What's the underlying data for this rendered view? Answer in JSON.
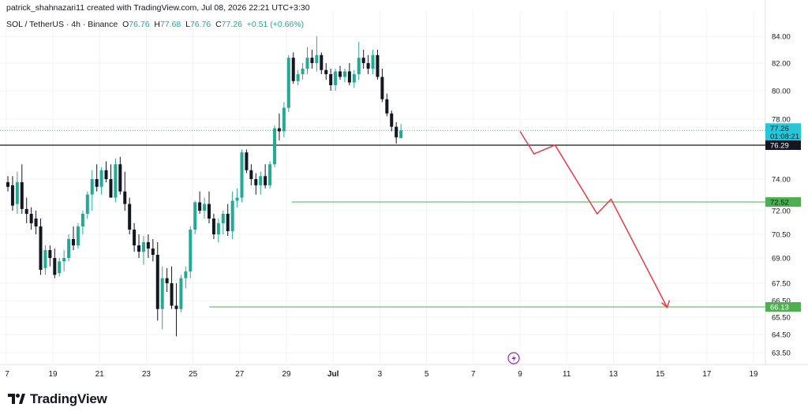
{
  "header": {
    "caption": "patrick_shahnazari11 created with TradingView.com, Jul 08, 2026 22:21 UTC+3:30"
  },
  "legend": {
    "symbol": "SOL / TetherUS · 4h · Binance",
    "o_label": "O",
    "o_value": "76.76",
    "h_label": "H",
    "h_value": "77.68",
    "l_label": "L",
    "l_value": "76.76",
    "c_label": "C",
    "c_value": "77.26",
    "change": "+0.51 (+0.66%)"
  },
  "footer": {
    "brand": "TradingView"
  },
  "colors": {
    "up": "#22ab94",
    "down": "#131722",
    "grid": "#f0f3fa",
    "green_line": "#4caf50",
    "projection": "#f23645",
    "price_tag": "#26c6da"
  },
  "chart_data": {
    "type": "candlestick",
    "x_ticks": [
      {
        "label": "7",
        "day": 17
      },
      {
        "label": "19",
        "day": 19
      },
      {
        "label": "21",
        "day": 21
      },
      {
        "label": "23",
        "day": 23
      },
      {
        "label": "25",
        "day": 25
      },
      {
        "label": "27",
        "day": 27
      },
      {
        "label": "29",
        "day": 29
      },
      {
        "label": "Jul",
        "day": 31
      },
      {
        "label": "3",
        "day": 33
      },
      {
        "label": "5",
        "day": 35
      },
      {
        "label": "7",
        "day": 37
      },
      {
        "label": "9",
        "day": 39
      },
      {
        "label": "11",
        "day": 41
      },
      {
        "label": "13",
        "day": 43
      },
      {
        "label": "15",
        "day": 45
      },
      {
        "label": "17",
        "day": 47
      },
      {
        "label": "19",
        "day": 49
      }
    ],
    "y_ticks": [
      "84.00",
      "82.00",
      "80.00",
      "78.00",
      "74.00",
      "72.00",
      "70.50",
      "69.00",
      "67.50",
      "66.50",
      "65.50",
      "64.50",
      "63.50"
    ],
    "y_tick_values": [
      84,
      82,
      80,
      78,
      74,
      72,
      70.5,
      69,
      67.5,
      66.5,
      65.5,
      64.5,
      63.5
    ],
    "price_labels": {
      "current": "77.26",
      "countdown": "01:08:21",
      "black_line": "76.29",
      "green_mid": "72.52",
      "green_low": "66.13"
    },
    "levels": {
      "black": 76.29,
      "green_mid": 72.52,
      "green_low": 66.13
    },
    "projection": [
      {
        "day": 39.0,
        "price": 77.2
      },
      {
        "day": 39.6,
        "price": 75.7
      },
      {
        "day": 40.5,
        "price": 76.3
      },
      {
        "day": 42.3,
        "price": 71.8
      },
      {
        "day": 42.9,
        "price": 72.7
      },
      {
        "day": 45.3,
        "price": 66.1
      }
    ],
    "candles": [
      [
        73.8,
        74.2,
        73.2,
        73.5
      ],
      [
        73.6,
        74.2,
        72.0,
        72.3
      ],
      [
        72.4,
        74.5,
        71.8,
        73.8
      ],
      [
        73.8,
        75.0,
        71.8,
        72.1
      ],
      [
        72.1,
        72.8,
        71.2,
        71.8
      ],
      [
        71.8,
        72.2,
        70.8,
        71.2
      ],
      [
        71.5,
        72.0,
        70.5,
        71.0
      ],
      [
        71.0,
        71.5,
        68.0,
        68.3
      ],
      [
        68.4,
        69.8,
        68.0,
        69.5
      ],
      [
        69.5,
        69.8,
        68.5,
        69.0
      ],
      [
        69.0,
        69.6,
        67.8,
        68.0
      ],
      [
        68.1,
        69.0,
        67.9,
        68.8
      ],
      [
        68.8,
        69.5,
        68.2,
        69.0
      ],
      [
        69.0,
        70.5,
        68.8,
        70.2
      ],
      [
        70.2,
        71.0,
        69.5,
        69.8
      ],
      [
        69.8,
        71.2,
        69.6,
        71.0
      ],
      [
        71.0,
        72.0,
        70.5,
        71.8
      ],
      [
        71.8,
        73.2,
        71.5,
        73.0
      ],
      [
        73.0,
        74.6,
        72.0,
        74.0
      ],
      [
        74.0,
        75.0,
        73.2,
        73.5
      ],
      [
        73.5,
        74.8,
        73.0,
        74.6
      ],
      [
        74.6,
        75.2,
        73.8,
        74.0
      ],
      [
        74.0,
        75.0,
        72.8,
        72.8
      ],
      [
        72.8,
        75.4,
        72.5,
        75.0
      ],
      [
        75.0,
        75.5,
        73.0,
        73.2
      ],
      [
        73.2,
        74.5,
        72.0,
        72.4
      ],
      [
        72.4,
        72.8,
        70.5,
        70.8
      ],
      [
        70.8,
        71.2,
        69.4,
        69.8
      ],
      [
        69.8,
        70.5,
        69.0,
        69.4
      ],
      [
        69.4,
        70.4,
        68.6,
        70.0
      ],
      [
        70.0,
        70.5,
        69.0,
        69.6
      ],
      [
        69.6,
        70.2,
        68.8,
        69.2
      ],
      [
        69.2,
        70.0,
        65.3,
        66.0
      ],
      [
        66.0,
        68.5,
        64.8,
        67.8
      ],
      [
        67.8,
        68.4,
        67.0,
        67.5
      ],
      [
        67.5,
        68.5,
        66.0,
        66.2
      ],
      [
        66.2,
        67.5,
        64.4,
        66.0
      ],
      [
        66.0,
        68.0,
        65.8,
        67.8
      ],
      [
        67.8,
        68.5,
        67.2,
        68.2
      ],
      [
        68.2,
        71.0,
        67.8,
        70.8
      ],
      [
        70.8,
        72.6,
        70.5,
        72.5
      ],
      [
        72.5,
        73.2,
        71.8,
        72.0
      ],
      [
        72.0,
        72.8,
        71.5,
        72.4
      ],
      [
        72.4,
        73.2,
        71.2,
        71.5
      ],
      [
        71.5,
        71.8,
        70.2,
        70.5
      ],
      [
        70.5,
        71.5,
        70.0,
        71.2
      ],
      [
        71.2,
        72.0,
        70.5,
        71.8
      ],
      [
        71.8,
        72.4,
        70.4,
        70.7
      ],
      [
        70.7,
        73.2,
        70.2,
        72.6
      ],
      [
        72.6,
        73.4,
        72.2,
        72.8
      ],
      [
        72.8,
        76.0,
        72.5,
        75.8
      ],
      [
        75.8,
        76.0,
        74.4,
        74.6
      ],
      [
        74.6,
        75.0,
        73.6,
        74.0
      ],
      [
        74.0,
        74.4,
        73.0,
        73.6
      ],
      [
        73.6,
        74.5,
        73.0,
        74.2
      ],
      [
        74.2,
        75.0,
        73.4,
        73.6
      ],
      [
        73.6,
        75.2,
        73.4,
        75.0
      ],
      [
        75.0,
        77.6,
        74.8,
        77.4
      ],
      [
        77.4,
        78.4,
        76.6,
        77.2
      ],
      [
        77.2,
        79.2,
        76.8,
        78.8
      ],
      [
        78.8,
        82.6,
        78.5,
        82.4
      ],
      [
        82.4,
        82.8,
        80.5,
        80.7
      ],
      [
        80.7,
        81.5,
        80.4,
        81.2
      ],
      [
        81.2,
        82.0,
        80.8,
        81.6
      ],
      [
        81.6,
        83.2,
        81.2,
        82.4
      ],
      [
        82.4,
        83.0,
        81.6,
        82.0
      ],
      [
        82.0,
        84.0,
        81.4,
        82.6
      ],
      [
        82.6,
        82.8,
        81.2,
        81.5
      ],
      [
        81.5,
        82.0,
        80.8,
        81.2
      ],
      [
        81.2,
        81.6,
        80.0,
        80.4
      ],
      [
        80.4,
        81.6,
        80.0,
        81.4
      ],
      [
        81.4,
        81.8,
        80.8,
        81.0
      ],
      [
        81.0,
        81.6,
        80.6,
        81.4
      ],
      [
        81.4,
        82.0,
        80.4,
        80.6
      ],
      [
        80.6,
        81.5,
        80.2,
        81.2
      ],
      [
        81.2,
        83.6,
        80.8,
        82.4
      ],
      [
        82.4,
        83.0,
        81.6,
        82.0
      ],
      [
        82.0,
        82.6,
        81.2,
        81.6
      ],
      [
        81.6,
        83.0,
        81.2,
        82.6
      ],
      [
        82.6,
        83.0,
        80.8,
        81.0
      ],
      [
        81.0,
        81.6,
        79.2,
        79.4
      ],
      [
        79.4,
        79.8,
        78.2,
        78.4
      ],
      [
        78.4,
        78.6,
        77.2,
        77.5
      ],
      [
        77.5,
        77.8,
        76.4,
        76.8
      ],
      [
        76.76,
        77.68,
        76.76,
        77.26
      ]
    ]
  }
}
